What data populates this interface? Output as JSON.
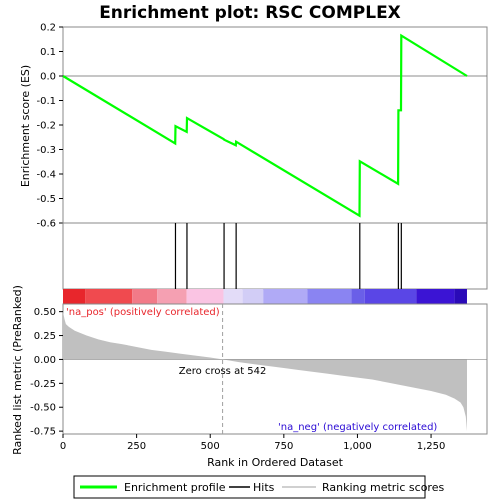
{
  "chart_data": {
    "type": "line",
    "title": "Enrichment plot: RSC COMPLEX",
    "top_panel": {
      "ylabel": "Enrichment score (ES)",
      "ylim": [
        -0.6,
        0.2
      ],
      "yticks": [
        "0.2",
        "0.1",
        "0.0",
        "-0.1",
        "-0.2",
        "-0.3",
        "-0.4",
        "-0.5",
        "-0.6"
      ],
      "ytick_values": [
        0.2,
        0.1,
        0.0,
        -0.1,
        -0.2,
        -0.3,
        -0.4,
        -0.5,
        -0.6
      ],
      "series": [
        {
          "name": "Enrichment profile",
          "color": "#00ff00",
          "x": [
            0,
            381,
            382,
            420,
            421,
            546,
            547,
            587,
            588,
            1007,
            1008,
            1138,
            1139,
            1148,
            1149,
            1372
          ],
          "y": [
            0.0,
            -0.275,
            -0.205,
            -0.228,
            -0.172,
            -0.258,
            -0.26,
            -0.283,
            -0.268,
            -0.57,
            -0.348,
            -0.44,
            -0.14,
            -0.14,
            0.165,
            0.0
          ]
        }
      ]
    },
    "hits": {
      "name": "Hits",
      "positions": [
        382,
        421,
        547,
        588,
        1008,
        1139,
        1149
      ]
    },
    "gradient_bar": {
      "colors": [
        "#e8262c",
        "#f04a4f",
        "#f27a88",
        "#f5a0b2",
        "#fac4e3",
        "#e3dcf8",
        "#d2cdf6",
        "#b0aaf6",
        "#8a84f2",
        "#6a5fe8",
        "#5a46e6",
        "#3b14d4",
        "#2a0ab8"
      ],
      "stops": [
        0,
        75,
        235,
        320,
        420,
        545,
        610,
        680,
        830,
        980,
        1025,
        1200,
        1330,
        1372
      ]
    },
    "bottom_panel": {
      "ylabel": "Ranked list metric (PreRanked)",
      "ylim": [
        -0.78,
        0.58
      ],
      "yticks": [
        "0.50",
        "0.25",
        "0.00",
        "-0.25",
        "-0.50",
        "-0.75"
      ],
      "ytick_values": [
        0.5,
        0.25,
        0.0,
        -0.25,
        -0.5,
        -0.75
      ],
      "metric_curve": {
        "x": [
          0,
          5,
          10,
          20,
          40,
          80,
          120,
          160,
          200,
          250,
          300,
          350,
          400,
          450,
          500,
          542,
          600,
          650,
          700,
          750,
          800,
          850,
          900,
          950,
          1000,
          1050,
          1100,
          1150,
          1200,
          1250,
          1300,
          1330,
          1350,
          1360,
          1368,
          1372
        ],
        "y": [
          0.5,
          0.42,
          0.37,
          0.34,
          0.3,
          0.25,
          0.21,
          0.18,
          0.16,
          0.13,
          0.1,
          0.08,
          0.06,
          0.04,
          0.02,
          0.0,
          -0.03,
          -0.05,
          -0.07,
          -0.09,
          -0.11,
          -0.13,
          -0.15,
          -0.17,
          -0.19,
          -0.21,
          -0.24,
          -0.27,
          -0.3,
          -0.33,
          -0.37,
          -0.41,
          -0.45,
          -0.5,
          -0.6,
          -0.75
        ]
      },
      "pos_label": "'na_pos' (positively correlated)",
      "neg_label": "'na_neg' (negatively correlated)",
      "zero_cross_label": "Zero cross at 542",
      "zero_cross": 542
    },
    "xlabel": "Rank in Ordered Dataset",
    "xlim": [
      0,
      1440
    ],
    "xticks": [
      "0",
      "250",
      "500",
      "750",
      "1,000",
      "1,250"
    ],
    "xtick_values": [
      0,
      250,
      500,
      750,
      1000,
      1250
    ],
    "legend": {
      "placement": "bottom",
      "items": [
        {
          "label": "Enrichment profile",
          "color": "#00ff00"
        },
        {
          "label": "Hits",
          "color": "#000000"
        },
        {
          "label": "Ranking metric scores",
          "color": "#c0c0c0"
        }
      ]
    }
  }
}
